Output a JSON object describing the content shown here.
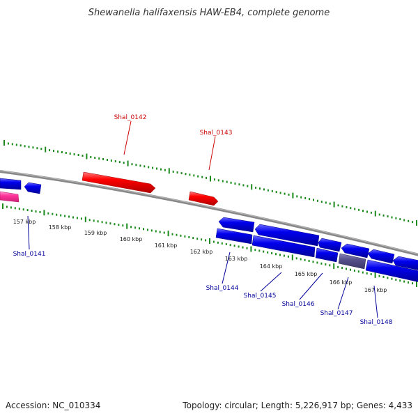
{
  "title": "Shewanella halifaxensis HAW-EB4, complete genome",
  "footer": {
    "accession": "Accession: NC_010334",
    "summary": "Topology: circular; Length: 5,226,917 bp; Genes: 4,433"
  },
  "colors": {
    "forward_gene": "#ff0000",
    "reverse_gene": "#0000ee",
    "dimmed_gene": "#55508a",
    "pink_feature": "#ff3399",
    "backbone": "#888888",
    "tick": "#1a8a1a",
    "forward_label": "#cc0000",
    "reverse_label": "#000099"
  },
  "scale_labels": [
    "157 kbp",
    "158 kbp",
    "159 kbp",
    "160 kbp",
    "161 kbp",
    "162 kbp",
    "163 kbp",
    "164 kbp",
    "165 kbp",
    "166 kbp",
    "167 kbp"
  ],
  "forward_genes": [
    {
      "label": "Shal_0142"
    },
    {
      "label": "Shal_0143"
    }
  ],
  "reverse_genes": [
    {
      "label": "Shal_0141"
    },
    {
      "label": "Shal_0144"
    },
    {
      "label": "Shal_0145"
    },
    {
      "label": "Shal_0146"
    },
    {
      "label": "Shal_0147"
    },
    {
      "label": "Shal_0148"
    }
  ]
}
